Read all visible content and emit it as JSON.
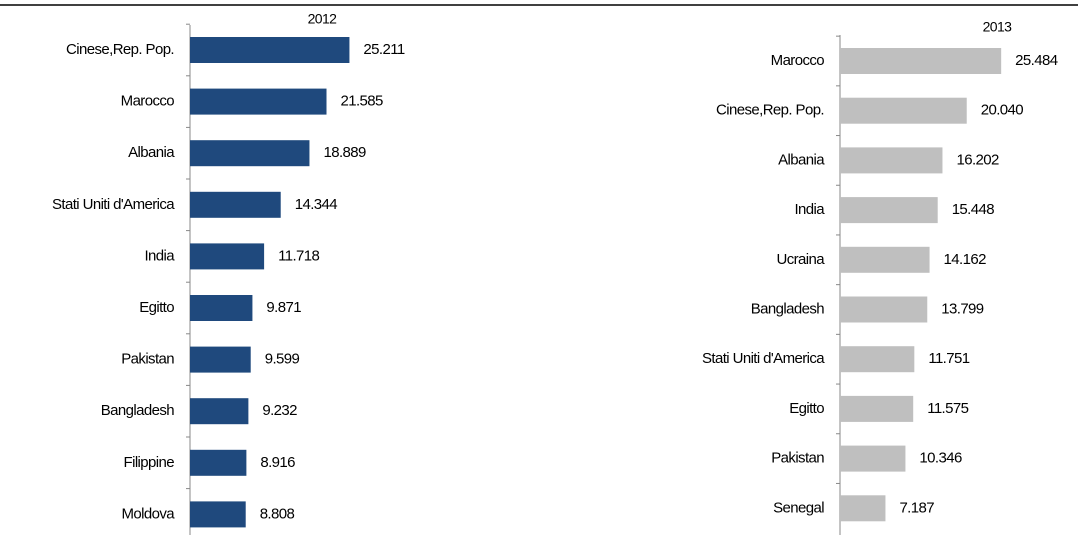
{
  "chart_data": [
    {
      "type": "bar",
      "orientation": "horizontal",
      "title": "2012",
      "color": "#1f497d",
      "categories": [
        "Cinese,Rep. Pop.",
        "Marocco",
        "Albania",
        "Stati Uniti d'America",
        "India",
        "Egitto",
        "Pakistan",
        "Bangladesh",
        "Filippine",
        "Moldova"
      ],
      "values": [
        25211,
        21585,
        18889,
        14344,
        11718,
        9871,
        9599,
        9232,
        8916,
        8808
      ],
      "value_labels": [
        "25.211",
        "21.585",
        "18.889",
        "14.344",
        "11.718",
        "9.871",
        "9.599",
        "9.232",
        "8.916",
        "8.808"
      ]
    },
    {
      "type": "bar",
      "orientation": "horizontal",
      "title": "2013",
      "color": "#bfbfbf",
      "categories": [
        "Marocco",
        "Cinese,Rep. Pop.",
        "Albania",
        "India",
        "Ucraina",
        "Bangladesh",
        "Stati Uniti d'America",
        "Egitto",
        "Pakistan",
        "Senegal"
      ],
      "values": [
        25484,
        20040,
        16202,
        15448,
        14162,
        13799,
        11751,
        11575,
        10346,
        7187
      ],
      "value_labels": [
        "25.484",
        "20.040",
        "16.202",
        "15.448",
        "14.162",
        "13.799",
        "11.751",
        "11.575",
        "10.346",
        "7.187"
      ]
    }
  ]
}
